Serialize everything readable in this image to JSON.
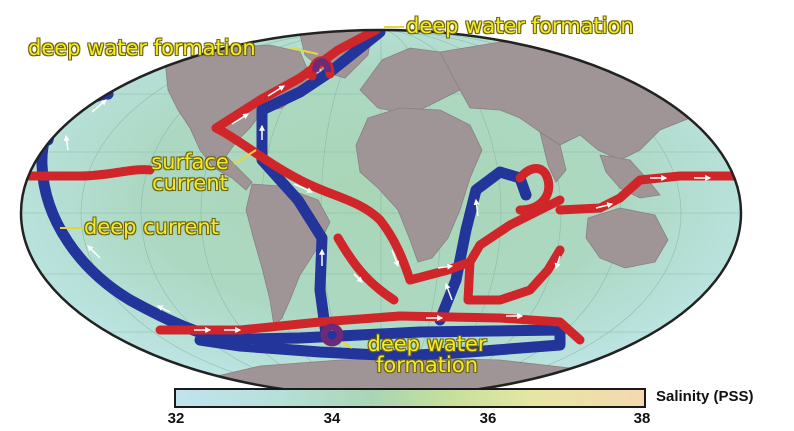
{
  "labels": {
    "dwf_north_left": "deep water formation",
    "dwf_north_right": "deep water formation",
    "surface_current_line1": "surface",
    "surface_current_line2": "current",
    "deep_current": "deep current",
    "dwf_south_line1": "deep water",
    "dwf_south_line2": "formation"
  },
  "colorbar": {
    "title": "Salinity (PSS)",
    "ticks": [
      "32",
      "34",
      "36",
      "38"
    ],
    "min": 32,
    "max": 38
  },
  "colors": {
    "surface_current": "#d0262a",
    "deep_current": "#23349a",
    "land": "#9f9496",
    "callout_text": "#f3ea2a"
  }
}
